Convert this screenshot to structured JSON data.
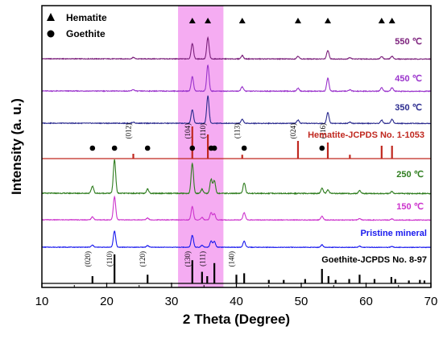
{
  "chart_data": {
    "type": "line",
    "xlabel": "2 Theta (Degree)",
    "ylabel": "Intensity (a. u.)",
    "xlim": [
      10,
      70
    ],
    "xticks": [
      "10",
      "20",
      "30",
      "40",
      "50",
      "60",
      "70"
    ],
    "highlight_region": {
      "from": 31,
      "to": 38,
      "color": "#f39ef0"
    },
    "legend": {
      "position": "top-left",
      "items": [
        {
          "label": "Hematite",
          "marker": "triangle"
        },
        {
          "label": "Goethite",
          "marker": "circle"
        }
      ]
    },
    "series": [
      {
        "name": "550 ℃",
        "color": "#7b1f7b",
        "kind": "pattern",
        "peaks": [
          [
            24.1,
            0.05
          ],
          [
            33.2,
            0.55
          ],
          [
            35.6,
            0.75
          ],
          [
            40.9,
            0.12
          ],
          [
            49.5,
            0.1
          ],
          [
            54.1,
            0.3
          ],
          [
            57.5,
            0.05
          ],
          [
            62.4,
            0.09
          ],
          [
            64.0,
            0.1
          ]
        ],
        "markers": [
          {
            "x": 33.2,
            "type": "triangle"
          },
          {
            "x": 35.6,
            "type": "triangle"
          },
          {
            "x": 40.9,
            "type": "triangle"
          },
          {
            "x": 49.5,
            "type": "triangle"
          },
          {
            "x": 54.1,
            "type": "triangle"
          },
          {
            "x": 62.4,
            "type": "triangle"
          },
          {
            "x": 64.0,
            "type": "triangle"
          }
        ]
      },
      {
        "name": "450 ℃",
        "color": "#9a33cc",
        "kind": "pattern",
        "peaks": [
          [
            24.1,
            0.05
          ],
          [
            33.2,
            0.5
          ],
          [
            35.6,
            0.9
          ],
          [
            40.9,
            0.15
          ],
          [
            49.5,
            0.1
          ],
          [
            54.1,
            0.45
          ],
          [
            57.5,
            0.05
          ],
          [
            62.4,
            0.12
          ],
          [
            64.0,
            0.12
          ]
        ]
      },
      {
        "name": "350 ℃",
        "color": "#2b2b8f",
        "kind": "pattern",
        "peaks": [
          [
            24.1,
            0.04
          ],
          [
            33.2,
            0.5
          ],
          [
            35.6,
            1.0
          ],
          [
            40.9,
            0.15
          ],
          [
            49.5,
            0.12
          ],
          [
            54.1,
            0.4
          ],
          [
            57.5,
            0.05
          ],
          [
            62.4,
            0.12
          ],
          [
            64.0,
            0.15
          ]
        ]
      },
      {
        "name": "Hematite-JCPDS No. 1-1053",
        "color": "#c0281f",
        "kind": "sticks",
        "sticks": [
          [
            24.1,
            0.15
          ],
          [
            33.2,
            1.0
          ],
          [
            35.6,
            0.75
          ],
          [
            40.9,
            0.12
          ],
          [
            49.5,
            0.55
          ],
          [
            54.1,
            0.5
          ],
          [
            57.5,
            0.12
          ],
          [
            62.4,
            0.4
          ],
          [
            64.0,
            0.4
          ]
        ],
        "hkl": [
          {
            "x": 24.1,
            "label": "(012)"
          },
          {
            "x": 33.2,
            "label": "(104)"
          },
          {
            "x": 35.6,
            "label": "(110)"
          },
          {
            "x": 40.9,
            "label": "(113)"
          },
          {
            "x": 49.5,
            "label": "(024)"
          },
          {
            "x": 54.1,
            "label": "(116)"
          }
        ]
      },
      {
        "name": "250 ℃",
        "color": "#2f7d1f",
        "kind": "pattern",
        "peaks": [
          [
            17.8,
            0.2
          ],
          [
            21.2,
            0.95
          ],
          [
            26.3,
            0.12
          ],
          [
            33.2,
            0.85
          ],
          [
            34.7,
            0.12
          ],
          [
            36.1,
            0.4
          ],
          [
            36.6,
            0.35
          ],
          [
            41.2,
            0.3
          ],
          [
            53.2,
            0.15
          ],
          [
            54.1,
            0.1
          ],
          [
            59.0,
            0.08
          ],
          [
            64.0,
            0.06
          ]
        ],
        "markers": [
          {
            "x": 17.8,
            "type": "circle"
          },
          {
            "x": 21.2,
            "type": "circle"
          },
          {
            "x": 26.3,
            "type": "circle"
          },
          {
            "x": 33.2,
            "type": "circle"
          },
          {
            "x": 36.1,
            "type": "circle"
          },
          {
            "x": 36.6,
            "type": "circle"
          },
          {
            "x": 41.2,
            "type": "circle"
          },
          {
            "x": 53.2,
            "type": "circle"
          }
        ]
      },
      {
        "name": "150 ℃",
        "color": "#cc33cc",
        "kind": "pattern",
        "peaks": [
          [
            17.8,
            0.12
          ],
          [
            21.2,
            0.95
          ],
          [
            26.3,
            0.08
          ],
          [
            33.2,
            0.55
          ],
          [
            34.7,
            0.1
          ],
          [
            36.1,
            0.3
          ],
          [
            36.6,
            0.25
          ],
          [
            41.2,
            0.3
          ],
          [
            53.2,
            0.15
          ],
          [
            59.0,
            0.06
          ],
          [
            64.0,
            0.05
          ]
        ]
      },
      {
        "name": "Pristine mineral",
        "color": "#1a1aee",
        "kind": "pattern",
        "peaks": [
          [
            17.8,
            0.1
          ],
          [
            21.2,
            0.8
          ],
          [
            26.3,
            0.08
          ],
          [
            33.2,
            0.6
          ],
          [
            34.7,
            0.1
          ],
          [
            36.1,
            0.3
          ],
          [
            36.6,
            0.28
          ],
          [
            41.2,
            0.3
          ],
          [
            53.2,
            0.12
          ],
          [
            59.0,
            0.06
          ],
          [
            64.0,
            0.05
          ]
        ]
      },
      {
        "name": "Goethite-JCPDS No. 8-97",
        "color": "#000000",
        "kind": "sticks",
        "sticks": [
          [
            17.8,
            0.25
          ],
          [
            21.2,
            1.0
          ],
          [
            26.3,
            0.3
          ],
          [
            33.2,
            0.8
          ],
          [
            34.7,
            0.4
          ],
          [
            35.5,
            0.25
          ],
          [
            36.6,
            0.7
          ],
          [
            40.0,
            0.3
          ],
          [
            41.2,
            0.35
          ],
          [
            45.0,
            0.12
          ],
          [
            47.3,
            0.12
          ],
          [
            50.6,
            0.15
          ],
          [
            53.2,
            0.5
          ],
          [
            54.2,
            0.25
          ],
          [
            55.3,
            0.12
          ],
          [
            57.4,
            0.15
          ],
          [
            59.0,
            0.3
          ],
          [
            61.3,
            0.15
          ],
          [
            63.9,
            0.22
          ],
          [
            64.5,
            0.15
          ],
          [
            66.6,
            0.1
          ],
          [
            68.3,
            0.12
          ],
          [
            69.0,
            0.1
          ]
        ],
        "hkl": [
          {
            "x": 17.8,
            "label": "(020)"
          },
          {
            "x": 21.2,
            "label": "(110)"
          },
          {
            "x": 26.3,
            "label": "(120)"
          },
          {
            "x": 33.2,
            "label": "(130)"
          },
          {
            "x": 35.5,
            "label": "(111)"
          },
          {
            "x": 40.0,
            "label": "(140)"
          }
        ]
      }
    ]
  }
}
